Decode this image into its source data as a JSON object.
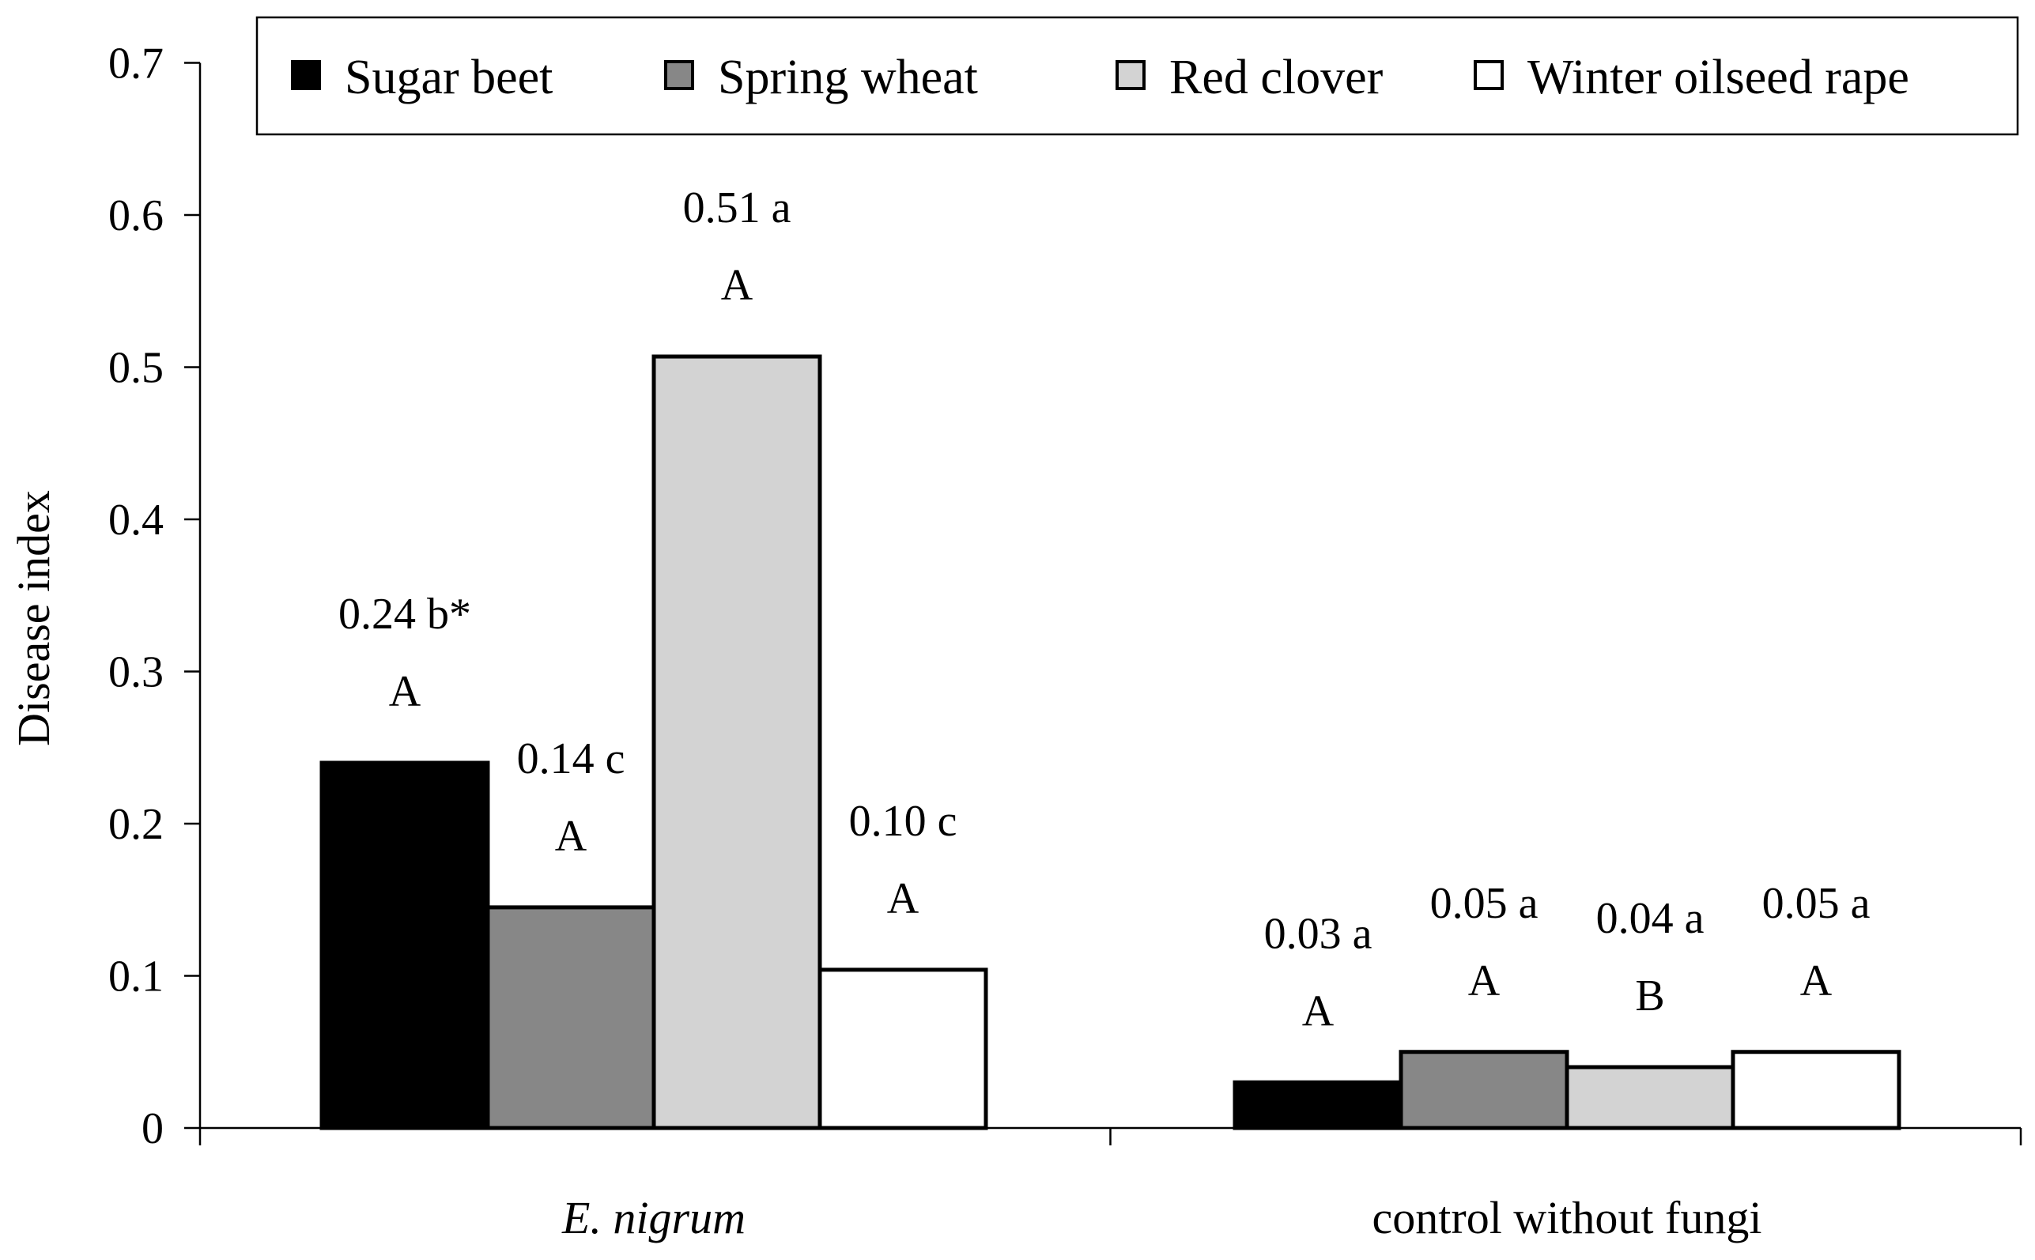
{
  "chart_data": {
    "type": "bar",
    "title": "",
    "xlabel": "",
    "ylabel": "Disease index",
    "ylim": [
      0,
      0.7
    ],
    "yticks": [
      "0",
      "0.1",
      "0.2",
      "0.3",
      "0.4",
      "0.5",
      "0.6",
      "0.7"
    ],
    "grid": false,
    "legend_position": "top",
    "categories": [
      {
        "label": "E. nigrum",
        "italic": true
      },
      {
        "label": "control without fungi",
        "italic": false
      }
    ],
    "series": [
      {
        "name": "Sugar beet",
        "color": "#000000",
        "values": [
          0.24,
          0.03
        ],
        "value_labels": [
          "0.24 b*",
          "0.03 a"
        ],
        "group_letters": [
          "A",
          "A"
        ]
      },
      {
        "name": "Spring wheat",
        "color": "#878787",
        "values": [
          0.145,
          0.05
        ],
        "value_labels": [
          "0.14 c",
          "0.05 a"
        ],
        "group_letters": [
          "A",
          "A"
        ]
      },
      {
        "name": "Red clover",
        "color": "#d3d3d3",
        "values": [
          0.507,
          0.04
        ],
        "value_labels": [
          "0.51 a",
          "0.04 a"
        ],
        "group_letters": [
          "A",
          "B"
        ]
      },
      {
        "name": "Winter oilseed rape",
        "color": "#ffffff",
        "values": [
          0.104,
          0.05
        ],
        "value_labels": [
          "0.10 c",
          "0.05 a"
        ],
        "group_letters": [
          "A",
          "A"
        ]
      }
    ]
  }
}
